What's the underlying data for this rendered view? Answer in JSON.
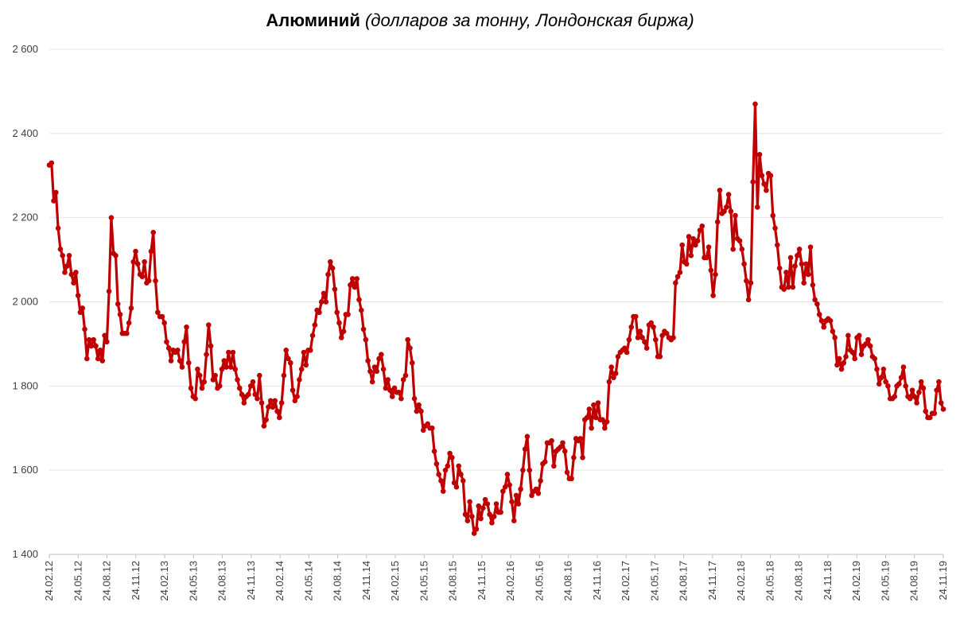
{
  "chart_data": {
    "type": "line",
    "title": "Алюминий",
    "subtitle": "(долларов за тонну, Лондонская биржа)",
    "xlabel": "",
    "ylabel": "",
    "ylim": [
      1400,
      2600
    ],
    "yticks": [
      1400,
      1600,
      1800,
      2000,
      2200,
      2400,
      2600
    ],
    "ytick_labels": [
      "1 400",
      "1 600",
      "1 800",
      "2 000",
      "2 200",
      "2 400",
      "2 600"
    ],
    "xtick_labels": [
      "24.02.12",
      "24.05.12",
      "24.08.12",
      "24.11.12",
      "24.02.13",
      "24.05.13",
      "24.08.13",
      "24.11.13",
      "24.02.14",
      "24.05.14",
      "24.08.14",
      "24.11.14",
      "24.02.15",
      "24.05.15",
      "24.08.15",
      "24.11.15",
      "24.02.16",
      "24.05.16",
      "24.08.16",
      "24.11.16",
      "24.02.17",
      "24.05.17",
      "24.08.17",
      "24.11.17",
      "24.02.18",
      "24.05.18",
      "24.08.18",
      "24.11.18",
      "24.02.19",
      "24.05.19",
      "24.08.19",
      "24.11.19"
    ],
    "grid": true,
    "legend": "none",
    "series_color": "#c00000",
    "series": [
      {
        "name": "",
        "values": [
          2325,
          2330,
          2240,
          2260,
          2175,
          2125,
          2110,
          2070,
          2085,
          2110,
          2065,
          2045,
          2070,
          2015,
          1975,
          1985,
          1935,
          1865,
          1910,
          1895,
          1910,
          1895,
          1865,
          1885,
          1860,
          1920,
          1905,
          2025,
          2200,
          2115,
          2110,
          1995,
          1970,
          1925,
          1925,
          1925,
          1950,
          1985,
          2095,
          2120,
          2090,
          2065,
          2060,
          2095,
          2045,
          2050,
          2120,
          2165,
          2050,
          1975,
          1965,
          1965,
          1950,
          1905,
          1890,
          1860,
          1885,
          1880,
          1885,
          1860,
          1845,
          1905,
          1940,
          1855,
          1795,
          1775,
          1770,
          1840,
          1825,
          1795,
          1810,
          1875,
          1945,
          1895,
          1815,
          1825,
          1795,
          1800,
          1840,
          1860,
          1845,
          1880,
          1845,
          1880,
          1840,
          1815,
          1795,
          1780,
          1760,
          1775,
          1780,
          1800,
          1810,
          1780,
          1770,
          1825,
          1760,
          1705,
          1720,
          1750,
          1765,
          1750,
          1765,
          1740,
          1725,
          1760,
          1825,
          1885,
          1865,
          1855,
          1790,
          1765,
          1775,
          1815,
          1840,
          1880,
          1850,
          1885,
          1885,
          1920,
          1945,
          1980,
          1975,
          2000,
          2020,
          2000,
          2065,
          2095,
          2080,
          2030,
          1975,
          1950,
          1915,
          1930,
          1970,
          1970,
          2040,
          2055,
          2035,
          2055,
          2005,
          1980,
          1935,
          1910,
          1860,
          1835,
          1810,
          1845,
          1835,
          1865,
          1875,
          1840,
          1795,
          1815,
          1790,
          1775,
          1795,
          1785,
          1785,
          1770,
          1815,
          1825,
          1910,
          1890,
          1855,
          1770,
          1740,
          1755,
          1740,
          1695,
          1705,
          1710,
          1700,
          1700,
          1645,
          1615,
          1590,
          1575,
          1550,
          1600,
          1610,
          1640,
          1630,
          1570,
          1560,
          1610,
          1590,
          1575,
          1495,
          1480,
          1525,
          1490,
          1450,
          1460,
          1515,
          1485,
          1510,
          1530,
          1520,
          1495,
          1475,
          1490,
          1520,
          1500,
          1500,
          1550,
          1560,
          1590,
          1565,
          1525,
          1480,
          1540,
          1520,
          1555,
          1600,
          1650,
          1680,
          1600,
          1540,
          1550,
          1555,
          1545,
          1575,
          1615,
          1620,
          1665,
          1665,
          1670,
          1610,
          1645,
          1650,
          1655,
          1665,
          1645,
          1595,
          1580,
          1580,
          1630,
          1675,
          1670,
          1675,
          1630,
          1720,
          1725,
          1745,
          1700,
          1755,
          1725,
          1760,
          1720,
          1720,
          1700,
          1715,
          1810,
          1845,
          1820,
          1830,
          1870,
          1880,
          1885,
          1890,
          1880,
          1910,
          1940,
          1965,
          1965,
          1915,
          1930,
          1915,
          1905,
          1890,
          1945,
          1950,
          1940,
          1910,
          1870,
          1870,
          1920,
          1930,
          1925,
          1915,
          1910,
          1915,
          2045,
          2060,
          2070,
          2135,
          2095,
          2090,
          2155,
          2110,
          2150,
          2135,
          2145,
          2170,
          2180,
          2105,
          2105,
          2130,
          2075,
          2015,
          2065,
          2190,
          2265,
          2210,
          2215,
          2225,
          2255,
          2215,
          2125,
          2205,
          2150,
          2145,
          2125,
          2090,
          2050,
          2005,
          2045,
          2285,
          2470,
          2225,
          2350,
          2300,
          2280,
          2265,
          2305,
          2300,
          2205,
          2175,
          2135,
          2080,
          2035,
          2030,
          2070,
          2035,
          2105,
          2035,
          2085,
          2110,
          2125,
          2090,
          2045,
          2090,
          2065,
          2130,
          2040,
          2005,
          1995,
          1970,
          1955,
          1940,
          1955,
          1960,
          1955,
          1930,
          1915,
          1850,
          1865,
          1840,
          1855,
          1870,
          1920,
          1885,
          1880,
          1865,
          1915,
          1920,
          1875,
          1895,
          1900,
          1910,
          1895,
          1870,
          1865,
          1840,
          1805,
          1820,
          1840,
          1810,
          1800,
          1770,
          1770,
          1775,
          1800,
          1805,
          1820,
          1845,
          1800,
          1775,
          1770,
          1790,
          1775,
          1760,
          1785,
          1810,
          1795,
          1740,
          1725,
          1725,
          1735,
          1735,
          1790,
          1810,
          1760,
          1745
        ]
      }
    ]
  }
}
